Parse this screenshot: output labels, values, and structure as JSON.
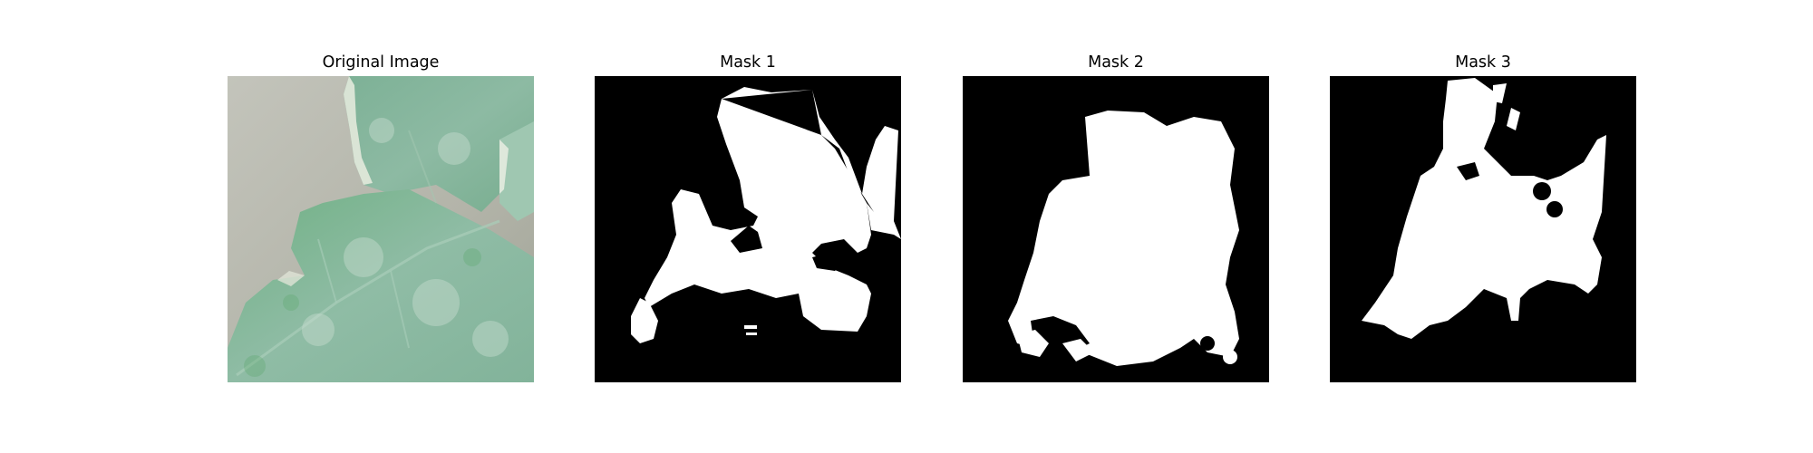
{
  "panels": [
    {
      "title": "Original Image"
    },
    {
      "title": "Mask 1"
    },
    {
      "title": "Mask 2"
    },
    {
      "title": "Mask 3"
    }
  ],
  "colors": {
    "mask_background": "#000000",
    "mask_foreground": "#ffffff",
    "leaf_green": "#82b39a",
    "background_gray": "#b4b5aa"
  }
}
